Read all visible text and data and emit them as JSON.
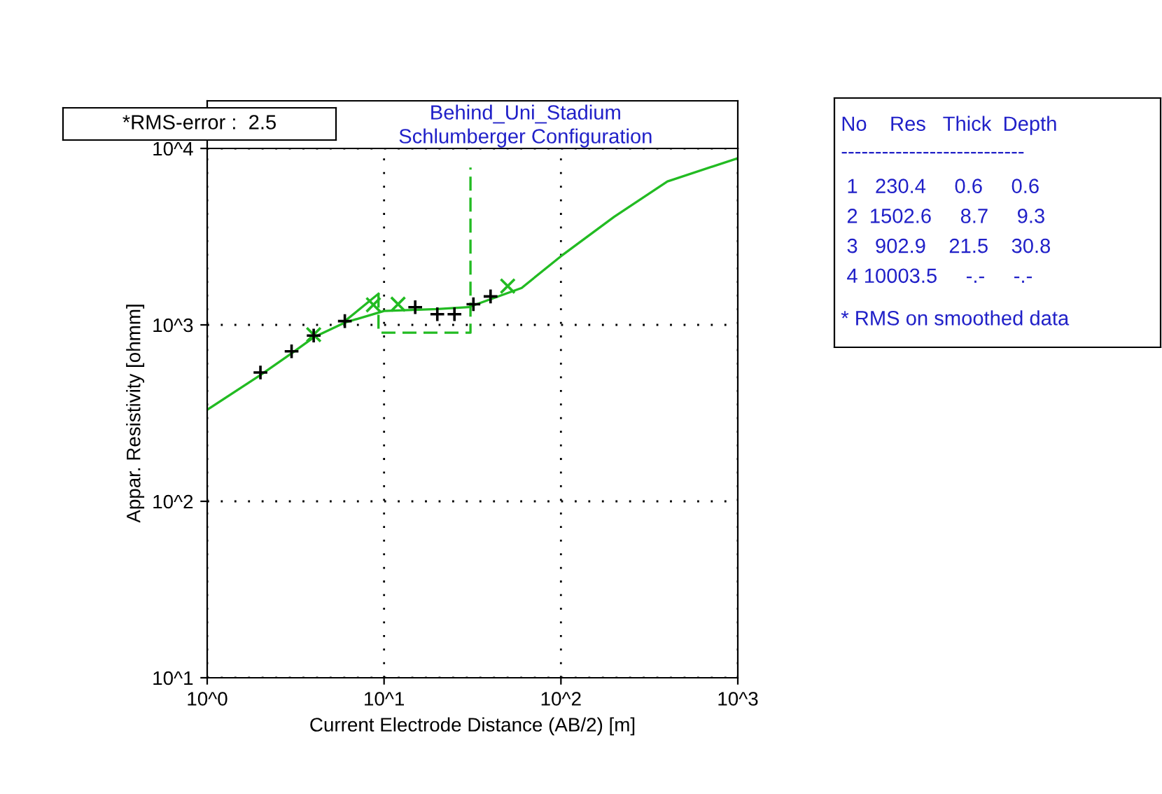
{
  "chart_data": {
    "type": "line",
    "title": "Behind_Uni_Stadium",
    "subtitle": "Schlumberger Configuration",
    "xlabel": "Current Electrode Distance (AB/2) [m]",
    "ylabel": "Appar. Resistivity [ohmm]",
    "log": "xy",
    "grid": true,
    "xlim": [
      1,
      1000
    ],
    "ylim": [
      10,
      10000
    ],
    "xticks": [
      {
        "value": 1,
        "label": "10^0"
      },
      {
        "value": 10,
        "label": "10^1"
      },
      {
        "value": 100,
        "label": "10^2"
      },
      {
        "value": 1000,
        "label": "10^3"
      }
    ],
    "yticks": [
      {
        "value": 10,
        "label": "10^1"
      },
      {
        "value": 100,
        "label": "10^2"
      },
      {
        "value": 1000,
        "label": "10^3"
      },
      {
        "value": 10000,
        "label": "10^4"
      }
    ],
    "series": [
      {
        "color": "#22bb22",
        "line_style": "solid",
        "marker": "none",
        "x": [
          1,
          2,
          3,
          4,
          6,
          10,
          20,
          30,
          60,
          100,
          200,
          400,
          1000
        ],
        "values": [
          330,
          520,
          690,
          850,
          1030,
          1200,
          1230,
          1260,
          1620,
          2450,
          4100,
          6500,
          8800
        ]
      },
      {
        "color": "#22bb22",
        "line_style": "solid",
        "marker": "none",
        "x": [
          6,
          9.3
        ],
        "values": [
          1050,
          1500
        ]
      },
      {
        "color": "#22bb22",
        "line_style": "dashed",
        "marker": "none",
        "x": [
          9.3,
          9.3,
          30.8,
          30.8
        ],
        "values": [
          1502.6,
          902.9,
          902.9,
          7800
        ]
      },
      {
        "type": "scatter",
        "color": "#22bb22",
        "marker": "cross",
        "x": [
          4,
          8.7,
          12,
          50
        ],
        "values": [
          880,
          1300,
          1310,
          1660
        ]
      },
      {
        "type": "scatter",
        "color": "#000000",
        "marker": "plus",
        "x": [
          2,
          3,
          4,
          6,
          15,
          20,
          25,
          32,
          40
        ],
        "values": [
          537,
          708,
          870,
          1050,
          1260,
          1150,
          1150,
          1310,
          1450
        ]
      }
    ],
    "annotations": [
      "*RMS-error :  2.5",
      "No    Res   Thick  Depth",
      "---------------------------",
      " 1   230.4     0.6     0.6",
      " 2  1502.6     8.7     9.3",
      " 3   902.9    21.5    30.8",
      " 4 10003.5     -.-     -.-",
      "* RMS on smoothed data"
    ]
  }
}
